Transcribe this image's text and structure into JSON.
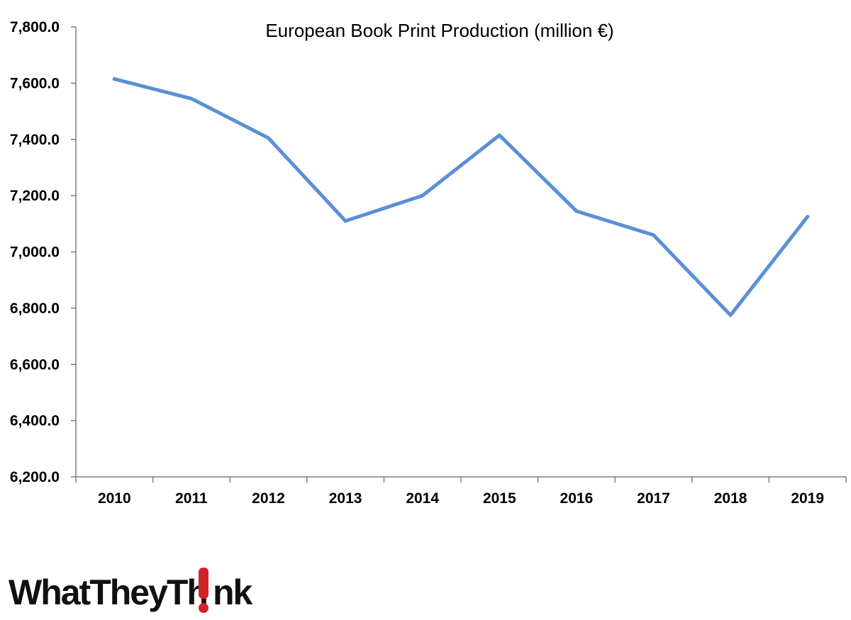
{
  "colors": {
    "line": "#5B8FD6",
    "axis": "#808080",
    "logo_accent": "#D2232A",
    "logo_text": "#111111"
  },
  "brand": {
    "logo_text_left": "WhatTheyTh",
    "logo_text_right": "nk"
  },
  "chart_data": {
    "type": "line",
    "title": "European Book Print Production (million €)",
    "xlabel": "",
    "ylabel": "",
    "categories": [
      "2010",
      "2011",
      "2012",
      "2013",
      "2014",
      "2015",
      "2016",
      "2017",
      "2018",
      "2019"
    ],
    "series": [
      {
        "values": [
          7615,
          7545,
          7405,
          7110,
          7200,
          7415,
          7145,
          7060,
          6775,
          7125
        ]
      }
    ],
    "ylim": [
      6200,
      7800
    ],
    "y_ticks": [
      6200,
      6400,
      6600,
      6800,
      7000,
      7200,
      7400,
      7600,
      7800
    ],
    "y_tick_labels": [
      "6,200.0",
      "6,400.0",
      "6,600.0",
      "6,800.0",
      "7,000.0",
      "7,200.0",
      "7,400.0",
      "7,600.0",
      "7,800.0"
    ],
    "grid": false,
    "legend": "none"
  }
}
